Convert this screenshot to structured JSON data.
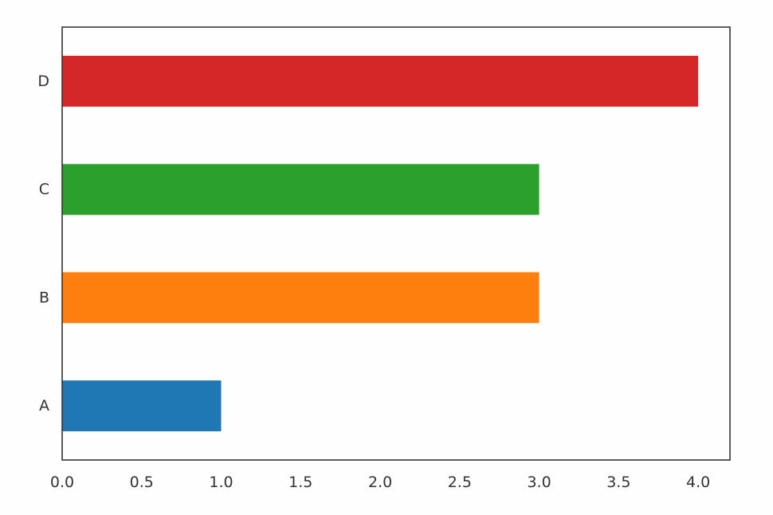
{
  "chart_data": {
    "type": "bar",
    "orientation": "horizontal",
    "categories": [
      "A",
      "B",
      "C",
      "D"
    ],
    "values": [
      1.0,
      3.0,
      3.0,
      4.0
    ],
    "colors": [
      "#1f77b4",
      "#ff7f0e",
      "#2ca02c",
      "#d62728"
    ],
    "xlim": [
      0,
      4.2
    ],
    "xticks": [
      "0.0",
      "0.5",
      "1.0",
      "1.5",
      "2.0",
      "2.5",
      "3.0",
      "3.5",
      "4.0"
    ],
    "title": "",
    "xlabel": "",
    "ylabel": "",
    "grid": false,
    "legend": "none"
  }
}
